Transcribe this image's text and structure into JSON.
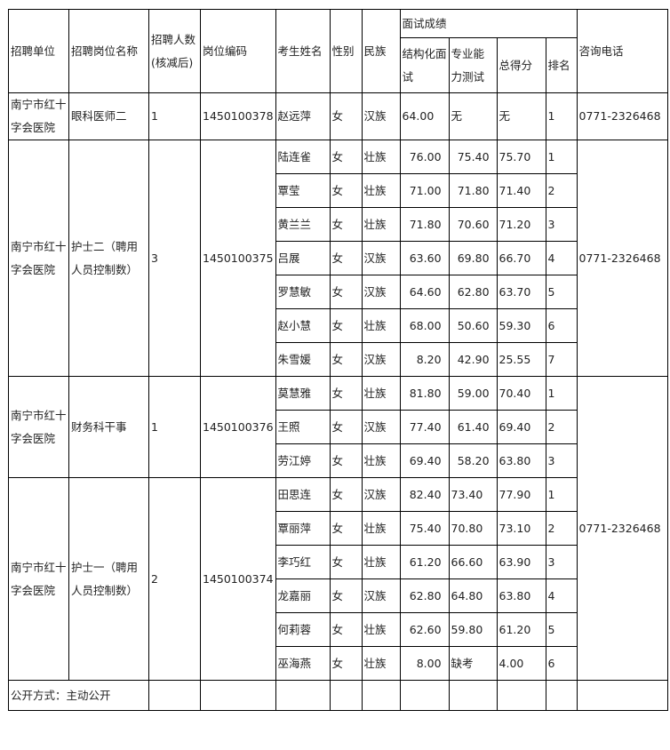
{
  "headers": {
    "unit": "招聘单位",
    "position": "招聘岗位名称",
    "count": "招聘人数(核减后)",
    "code": "岗位编码",
    "name": "考生姓名",
    "gender": "性别",
    "ethnicity": "民族",
    "interview": "面试成绩",
    "structured": "结构化面试",
    "professional": "专业能力测试",
    "total": "总得分",
    "rank": "排名",
    "phone": "咨询电话"
  },
  "groups": [
    {
      "unit": "南宁市红十字会医院",
      "position": "眼科医师二",
      "count": "1",
      "code": "1450100378",
      "phone": "0771-2326468",
      "phone_rows": 1,
      "prof_align": "left",
      "rows": [
        [
          "赵远萍",
          "女",
          "汉族",
          "64.00",
          "无",
          "无",
          "1"
        ]
      ]
    },
    {
      "unit": "南宁市红十字会医院",
      "position": "护士二（聘用人员控制数）",
      "count": "3",
      "code": "1450100375",
      "phone": "0771-2326468",
      "phone_rows": 7,
      "prof_align": "right",
      "rows": [
        [
          "陆连雀",
          "女",
          "壮族",
          "76.00",
          "75.40",
          "75.70",
          "1"
        ],
        [
          "覃莹",
          "女",
          "壮族",
          "71.00",
          "71.80",
          "71.40",
          "2"
        ],
        [
          "黄兰兰",
          "女",
          "壮族",
          "71.80",
          "70.60",
          "71.20",
          "3"
        ],
        [
          "吕展",
          "女",
          "汉族",
          "63.60",
          "69.80",
          "66.70",
          "4"
        ],
        [
          "罗慧敏",
          "女",
          "汉族",
          "64.60",
          "62.80",
          "63.70",
          "5"
        ],
        [
          "赵小慧",
          "女",
          "壮族",
          "68.00",
          "50.60",
          "59.30",
          "6"
        ],
        [
          "朱雪媛",
          "女",
          "汉族",
          "8.20",
          "42.90",
          "25.55",
          "7"
        ]
      ]
    },
    {
      "unit": "南宁市红十字会医院",
      "position": "财务科干事",
      "count": "1",
      "code": "1450100376",
      "phone": "0771-2326468",
      "phone_rows": 9,
      "prof_align": "right",
      "rows": [
        [
          "莫慧雅",
          "女",
          "壮族",
          "81.80",
          "59.00",
          "70.40",
          "1"
        ],
        [
          "王照",
          "女",
          "汉族",
          "77.40",
          "61.40",
          "69.40",
          "2"
        ],
        [
          "劳江婷",
          "女",
          "壮族",
          "69.40",
          "58.20",
          "63.80",
          "3"
        ]
      ]
    },
    {
      "unit": "南宁市红十字会医院",
      "position": "护士一（聘用人员控制数）",
      "count": "2",
      "code": "1450100374",
      "phone": null,
      "phone_rows": 0,
      "prof_align": "left",
      "rows": [
        [
          "田思连",
          "女",
          "汉族",
          "82.40",
          "73.40",
          "77.90",
          "1"
        ],
        [
          "覃丽萍",
          "女",
          "壮族",
          "75.40",
          "70.80",
          "73.10",
          "2"
        ],
        [
          "李巧红",
          "女",
          "壮族",
          "61.20",
          "66.60",
          "63.90",
          "3"
        ],
        [
          "龙嘉丽",
          "女",
          "汉族",
          "62.80",
          "64.80",
          "63.80",
          "4"
        ],
        [
          "何莉蓉",
          "女",
          "壮族",
          "62.60",
          "59.80",
          "61.20",
          "5"
        ],
        [
          "巫海燕",
          "女",
          "壮族",
          "8.00",
          "缺考",
          "4.00",
          "6"
        ]
      ]
    }
  ],
  "footer": {
    "disclosure": "公开方式：主动公开"
  }
}
